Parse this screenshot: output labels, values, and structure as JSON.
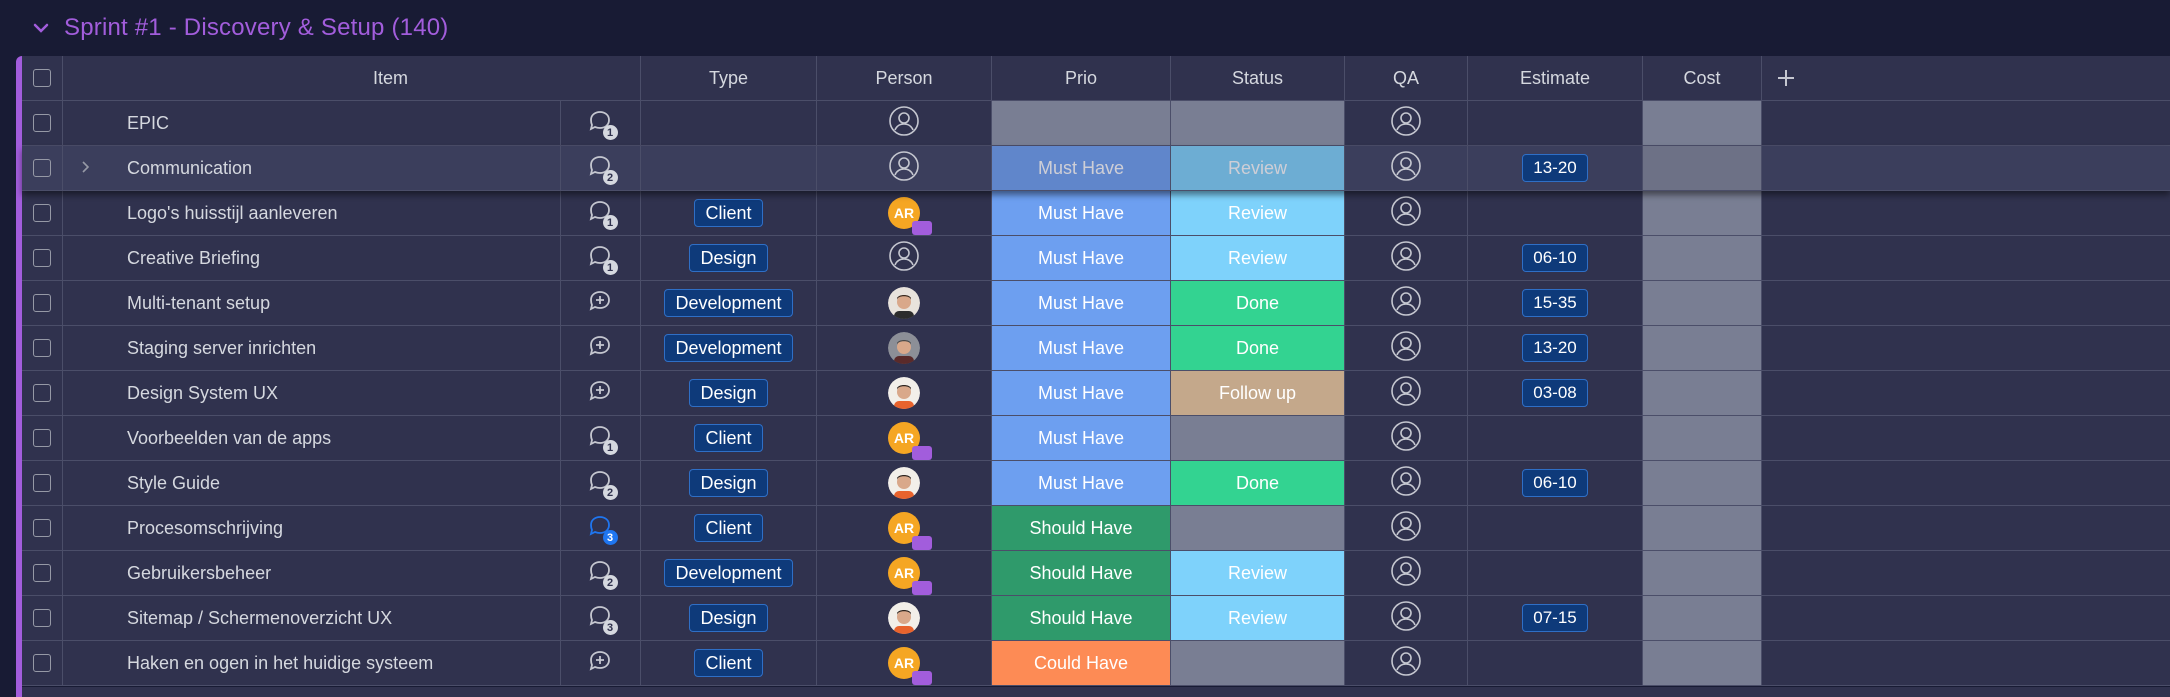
{
  "group": {
    "title": "Sprint #1 - Discovery & Setup (140)",
    "accent": "#a25ddc"
  },
  "columns": {
    "item": "Item",
    "type": "Type",
    "person": "Person",
    "prio": "Prio",
    "status": "Status",
    "qa": "QA",
    "estimate": "Estimate",
    "cost": "Cost",
    "add": "+"
  },
  "colors": {
    "must_have": "#6d9ff0",
    "should_have": "#2f9a6b",
    "could_have": "#fd8b55",
    "review": "#7ed2fb",
    "done": "#33d391",
    "follow_up": "#c4a88b",
    "empty": "#797e93"
  },
  "rows": [
    {
      "name": "EPIC",
      "updates": "1",
      "update_icon": "chat-icon",
      "type": "",
      "person": "empty",
      "prio": "",
      "status": "",
      "estimate": "",
      "expand": false
    },
    {
      "name": "Communication",
      "updates": "2",
      "update_icon": "chat-icon",
      "type": "",
      "person": "empty",
      "prio": "Must Have",
      "status": "Review",
      "estimate": "13-20",
      "expand": true
    },
    {
      "name": "Logo's huisstijl aanleveren",
      "updates": "1",
      "update_icon": "chat-icon",
      "type": "Client",
      "person": "AR",
      "prio": "Must Have",
      "status": "Review",
      "estimate": "",
      "expand": false
    },
    {
      "name": "Creative Briefing",
      "updates": "1",
      "update_icon": "chat-icon",
      "type": "Design",
      "person": "empty",
      "prio": "Must Have",
      "status": "Review",
      "estimate": "06-10",
      "expand": false
    },
    {
      "name": "Multi-tenant setup",
      "updates": "",
      "update_icon": "add-update-icon",
      "type": "Development",
      "person": "photo-a",
      "prio": "Must Have",
      "status": "Done",
      "estimate": "15-35",
      "expand": false
    },
    {
      "name": "Staging server inrichten",
      "updates": "",
      "update_icon": "add-update-icon",
      "type": "Development",
      "person": "photo-b",
      "prio": "Must Have",
      "status": "Done",
      "estimate": "13-20",
      "expand": false
    },
    {
      "name": "Design System UX",
      "updates": "",
      "update_icon": "add-update-icon",
      "type": "Design",
      "person": "photo-c",
      "prio": "Must Have",
      "status": "Follow up",
      "estimate": "03-08",
      "expand": false
    },
    {
      "name": "Voorbeelden van de apps",
      "updates": "1",
      "update_icon": "chat-icon",
      "type": "Client",
      "person": "AR",
      "prio": "Must Have",
      "status": "",
      "estimate": "",
      "expand": false
    },
    {
      "name": "Style Guide",
      "updates": "2",
      "update_icon": "chat-icon",
      "type": "Design",
      "person": "photo-c",
      "prio": "Must Have",
      "status": "Done",
      "estimate": "06-10",
      "expand": false
    },
    {
      "name": "Procesomschrijving",
      "updates": "3",
      "update_icon": "chat-icon-blue",
      "type": "Client",
      "person": "AR",
      "prio": "Should Have",
      "status": "",
      "estimate": "",
      "expand": false
    },
    {
      "name": "Gebruikersbeheer",
      "updates": "2",
      "update_icon": "chat-icon",
      "type": "Development",
      "person": "AR",
      "prio": "Should Have",
      "status": "Review",
      "estimate": "",
      "expand": false
    },
    {
      "name": "Sitemap / Schermenoverzicht UX",
      "updates": "3",
      "update_icon": "chat-icon",
      "type": "Design",
      "person": "photo-c",
      "prio": "Should Have",
      "status": "Review",
      "estimate": "07-15",
      "expand": false
    },
    {
      "name": "Haken en ogen in het huidige systeem",
      "updates": "",
      "update_icon": "add-update-icon",
      "type": "Client",
      "person": "AR",
      "prio": "Could Have",
      "status": "",
      "estimate": "",
      "expand": false
    }
  ]
}
